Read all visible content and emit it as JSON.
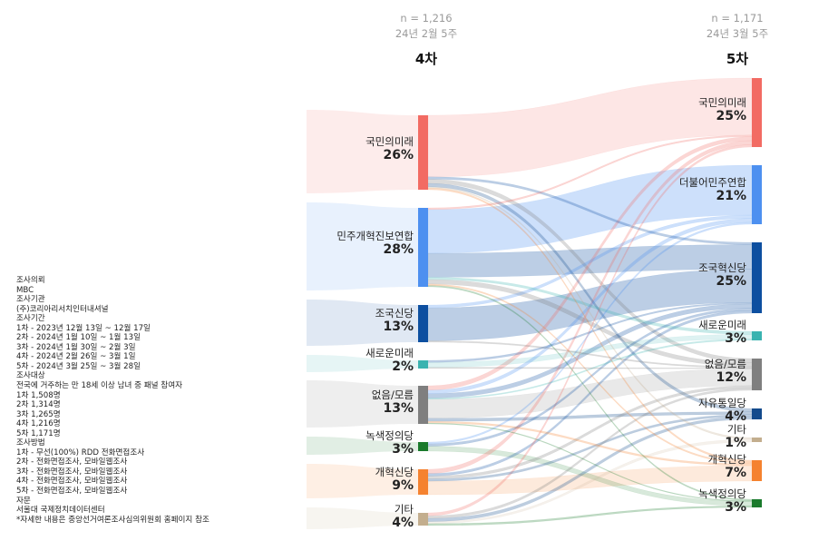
{
  "meta": {
    "lines": [
      "조사의뢰",
      "MBC",
      "조사기관",
      "(주)코리아리서치인터내셔널",
      "조사기간",
      "1차 - 2023년 12월 13일 ~ 12월 17일",
      "2차 - 2024년 1월 10일 ~ 1월 13일",
      "3차 - 2024년 1월 30일 ~ 2월 3일",
      "4차 - 2024년 2월 26일 ~ 3월 1일",
      "5차 - 2024년 3월 25일 ~ 3월 28일",
      "조사대상",
      "전국에 거주하는 만 18세 이상 남녀 중 패널 참여자",
      "1차 1,508명",
      "2차 1,314명",
      "3차 1,265명",
      "4차 1,216명",
      "5차 1,171명",
      "조사방법",
      "1차 - 무선(100%) RDD 전화면접조사",
      "2차 - 전화면접조사, 모바일웹조사",
      "3차 - 전화면접조사, 모바일웹조사",
      "4차 - 전화면접조사, 모바일웹조사",
      "5차 - 전화면접조사, 모바일웹조사",
      "자문",
      "서울대 국제정치데이터센터",
      "*자세한 내용은 중앙선거여론조사심의위원회 홈페이지 참조"
    ]
  },
  "columns": {
    "left": {
      "n": "n = 1,216",
      "date": "24년 2월 5주",
      "wave": "4차"
    },
    "right": {
      "n": "n = 1,171",
      "date": "24년 3월 5주",
      "wave": "5차"
    }
  },
  "chart_data": {
    "type": "sankey",
    "left_nodes": [
      {
        "name": "국민의미래",
        "pct": "26%",
        "value": 26,
        "color": "#f26b63"
      },
      {
        "name": "민주개혁진보연합",
        "pct": "28%",
        "value": 28,
        "color": "#4d90f0"
      },
      {
        "name": "조국신당",
        "pct": "13%",
        "value": 13,
        "color": "#0d4fa0"
      },
      {
        "name": "새로운미래",
        "pct": "2%",
        "value": 2,
        "color": "#3ab3b0"
      },
      {
        "name": "없음/모름",
        "pct": "13%",
        "value": 13,
        "color": "#7f7f7f"
      },
      {
        "name": "녹색정의당",
        "pct": "3%",
        "value": 3,
        "color": "#1a7a2c"
      },
      {
        "name": "개혁신당",
        "pct": "9%",
        "value": 9,
        "color": "#f5822f"
      },
      {
        "name": "기타",
        "pct": "4%",
        "value": 4,
        "color": "#c3ae8e"
      }
    ],
    "right_nodes": [
      {
        "name": "국민의미래",
        "pct": "25%",
        "value": 25,
        "color": "#f26b63"
      },
      {
        "name": "더불어민주연합",
        "pct": "21%",
        "value": 21,
        "color": "#4d90f0"
      },
      {
        "name": "조국혁신당",
        "pct": "25%",
        "value": 25,
        "color": "#0d4fa0"
      },
      {
        "name": "새로운미래",
        "pct": "3%",
        "value": 3,
        "color": "#3ab3b0"
      },
      {
        "name": "없음/모름",
        "pct": "12%",
        "value": 12,
        "color": "#7f7f7f"
      },
      {
        "name": "자유통일당",
        "pct": "4%",
        "value": 4,
        "color": "#134a8c"
      },
      {
        "name": "기타",
        "pct": "1%",
        "value": 1,
        "color": "#c3ae8e"
      },
      {
        "name": "개혁신당",
        "pct": "7%",
        "value": 7,
        "color": "#f5822f"
      },
      {
        "name": "녹색정의당",
        "pct": "3%",
        "value": 3,
        "color": "#1a7a2c"
      }
    ],
    "flows": [
      {
        "from": 0,
        "to": 0,
        "value": 21.5
      },
      {
        "from": 0,
        "to": 2,
        "value": 0.8
      },
      {
        "from": 0,
        "to": 4,
        "value": 1.5
      },
      {
        "from": 0,
        "to": 5,
        "value": 1.2
      },
      {
        "from": 0,
        "to": 7,
        "value": 0.6
      },
      {
        "from": 0,
        "to": 6,
        "value": 0.4
      },
      {
        "from": 1,
        "to": 1,
        "value": 15.5
      },
      {
        "from": 1,
        "to": 2,
        "value": 8.5
      },
      {
        "from": 1,
        "to": 4,
        "value": 1.6
      },
      {
        "from": 1,
        "to": 3,
        "value": 0.8
      },
      {
        "from": 1,
        "to": 0,
        "value": 0.6
      },
      {
        "from": 1,
        "to": 8,
        "value": 0.5
      },
      {
        "from": 1,
        "to": 7,
        "value": 0.5
      },
      {
        "from": 2,
        "to": 2,
        "value": 11.5
      },
      {
        "from": 2,
        "to": 1,
        "value": 1.0
      },
      {
        "from": 2,
        "to": 4,
        "value": 0.5
      },
      {
        "from": 3,
        "to": 3,
        "value": 1.2
      },
      {
        "from": 3,
        "to": 2,
        "value": 0.5
      },
      {
        "from": 3,
        "to": 4,
        "value": 0.3
      },
      {
        "from": 4,
        "to": 4,
        "value": 6.5
      },
      {
        "from": 4,
        "to": 0,
        "value": 1.5
      },
      {
        "from": 4,
        "to": 1,
        "value": 1.2
      },
      {
        "from": 4,
        "to": 2,
        "value": 1.5
      },
      {
        "from": 4,
        "to": 5,
        "value": 1.0
      },
      {
        "from": 4,
        "to": 7,
        "value": 0.6
      },
      {
        "from": 4,
        "to": 3,
        "value": 0.4
      },
      {
        "from": 4,
        "to": 8,
        "value": 0.3
      },
      {
        "from": 5,
        "to": 8,
        "value": 1.6
      },
      {
        "from": 5,
        "to": 2,
        "value": 0.8
      },
      {
        "from": 5,
        "to": 1,
        "value": 0.6
      },
      {
        "from": 6,
        "to": 7,
        "value": 4.8
      },
      {
        "from": 6,
        "to": 0,
        "value": 1.5
      },
      {
        "from": 6,
        "to": 4,
        "value": 1.0
      },
      {
        "from": 6,
        "to": 5,
        "value": 0.8
      },
      {
        "from": 6,
        "to": 2,
        "value": 0.9
      },
      {
        "from": 7,
        "to": 5,
        "value": 1.0
      },
      {
        "from": 7,
        "to": 0,
        "value": 0.9
      },
      {
        "from": 7,
        "to": 4,
        "value": 0.8
      },
      {
        "from": 7,
        "to": 6,
        "value": 0.6
      },
      {
        "from": 7,
        "to": 8,
        "value": 0.6
      }
    ]
  }
}
